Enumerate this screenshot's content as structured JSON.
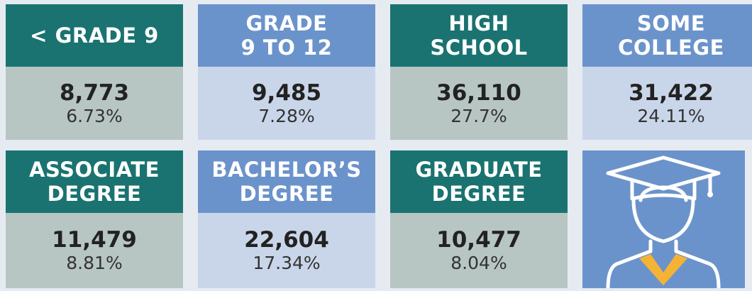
{
  "tiles": [
    {
      "label_lines": [
        "< GRADE 9"
      ],
      "count": "8,773",
      "percent": "6.73%"
    },
    {
      "label_lines": [
        "GRADE",
        "9 TO 12"
      ],
      "count": "9,485",
      "percent": "7.28%"
    },
    {
      "label_lines": [
        "HIGH",
        "SCHOOL"
      ],
      "count": "36,110",
      "percent": "27.7%"
    },
    {
      "label_lines": [
        "SOME",
        "COLLEGE"
      ],
      "count": "31,422",
      "percent": "24.11%"
    },
    {
      "label_lines": [
        "ASSOCIATE",
        "DEGREE"
      ],
      "count": "11,479",
      "percent": "8.81%"
    },
    {
      "label_lines": [
        "BACHELOR’S",
        "DEGREE"
      ],
      "count": "22,604",
      "percent": "17.34%"
    },
    {
      "label_lines": [
        "GRADUATE",
        "DEGREE"
      ],
      "count": "10,477",
      "percent": "8.04%"
    }
  ]
}
